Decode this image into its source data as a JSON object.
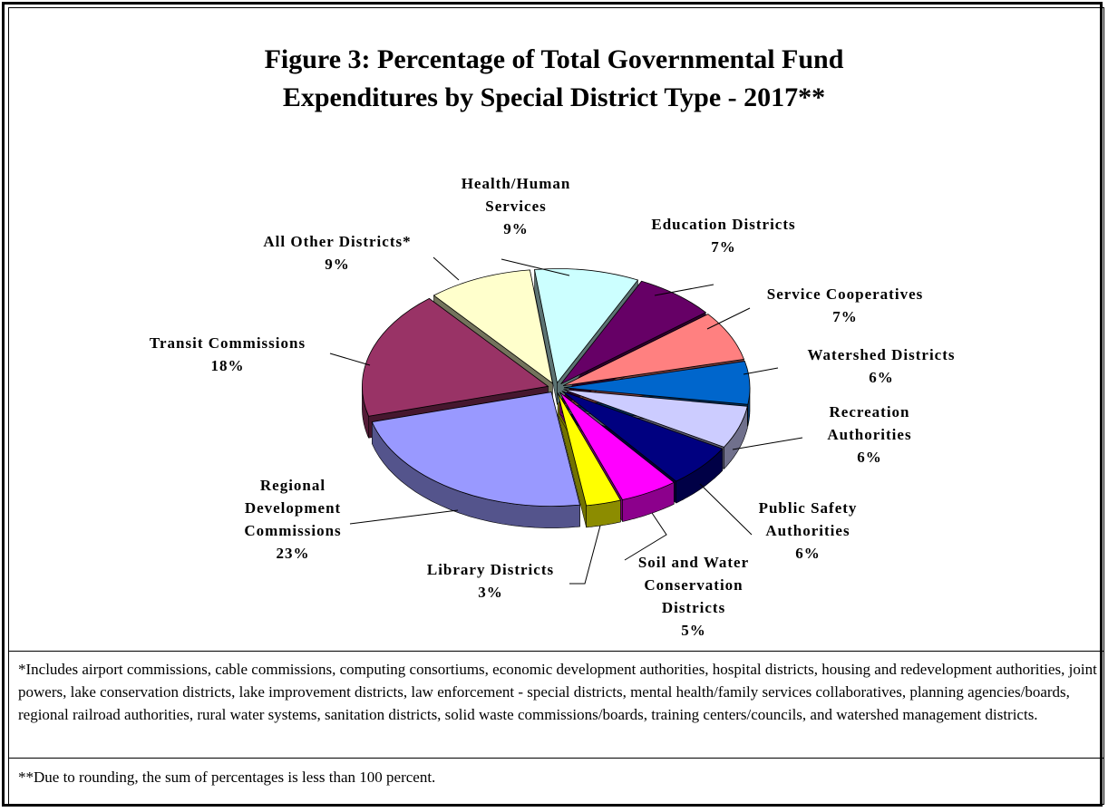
{
  "title_line1": "Figure 3:  Percentage of Total Governmental Fund",
  "title_line2": "Expenditures by Special District Type - 2017**",
  "chart_data": {
    "type": "pie",
    "title": "Figure 3:  Percentage of Total Governmental Fund Expenditures by Special District Type - 2017**",
    "slices": [
      {
        "label": "Health/Human Services",
        "label_lines": [
          "Health/Human",
          "Services"
        ],
        "pct_text": "9%",
        "value": 9,
        "color": "#ccffff"
      },
      {
        "label": "Education Districts",
        "label_lines": [
          "Education Districts"
        ],
        "pct_text": "7%",
        "value": 7,
        "color": "#660066"
      },
      {
        "label": "Service Cooperatives",
        "label_lines": [
          "Service Cooperatives"
        ],
        "pct_text": "7%",
        "value": 7,
        "color": "#ff8080"
      },
      {
        "label": "Watershed Districts",
        "label_lines": [
          "Watershed Districts"
        ],
        "pct_text": "6%",
        "value": 6,
        "color": "#0066cc"
      },
      {
        "label": "Recreation Authorities",
        "label_lines": [
          "Recreation",
          "Authorities"
        ],
        "pct_text": "6%",
        "value": 6,
        "color": "#ccccff"
      },
      {
        "label": "Public Safety Authorities",
        "label_lines": [
          "Public Safety",
          "Authorities"
        ],
        "pct_text": "6%",
        "value": 6,
        "color": "#000080"
      },
      {
        "label": "Soil and Water Conservation Districts",
        "label_lines": [
          "Soil and Water",
          "Conservation",
          "Districts"
        ],
        "pct_text": "5%",
        "value": 5,
        "color": "#ff00ff"
      },
      {
        "label": "Library Districts",
        "label_lines": [
          "Library Districts"
        ],
        "pct_text": "3%",
        "value": 3,
        "color": "#ffff00"
      },
      {
        "label": "Regional Development Commissions",
        "label_lines": [
          "Regional",
          "Development",
          "Commissions"
        ],
        "pct_text": "23%",
        "value": 23,
        "color": "#9999ff"
      },
      {
        "label": "Transit Commissions",
        "label_lines": [
          "Transit Commissions"
        ],
        "pct_text": "18%",
        "value": 18,
        "color": "#993366"
      },
      {
        "label": "All Other Districts*",
        "label_lines": [
          "All Other Districts*"
        ],
        "pct_text": "9%",
        "value": 9,
        "color": "#ffffcc"
      }
    ]
  },
  "footnote_1": "*Includes airport commissions, cable commissions, computing consortiums, economic development authorities, hospital districts, housing and redevelopment authorities, joint powers, lake conservation districts, lake improvement districts, law enforcement - special districts, mental health/family services collaboratives, planning agencies/boards, regional railroad authorities, rural water systems, sanitation districts, solid waste commissions/boards, training centers/councils, and watershed management districts.",
  "footnote_2": "**Due to rounding, the sum of percentages is less than 100 percent."
}
